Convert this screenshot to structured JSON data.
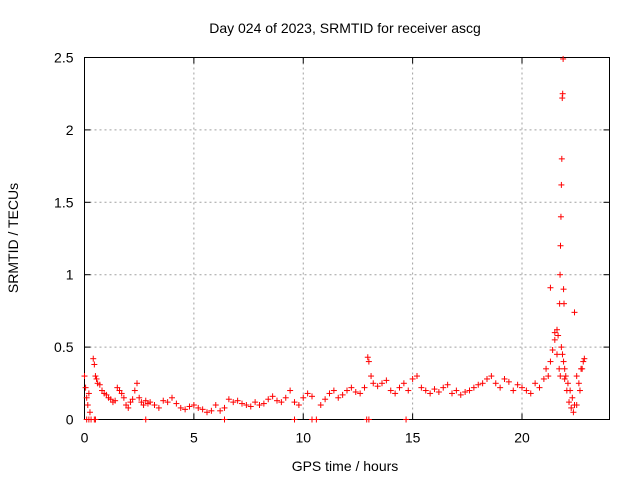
{
  "chart_data": {
    "type": "scatter",
    "title": "Day 024 of 2023, SRMTID for receiver ascg",
    "xlabel": "GPS time / hours",
    "ylabel": "SRMTID / TECUs",
    "xlim": [
      0,
      24
    ],
    "ylim": [
      0,
      2.5
    ],
    "xticks": [
      0,
      5,
      10,
      15,
      20
    ],
    "xtick_labels": [
      "0",
      "5",
      "10",
      "15",
      "20"
    ],
    "yticks": [
      0,
      0.5,
      1,
      1.5,
      2,
      2.5
    ],
    "ytick_labels": [
      "0",
      "0.5",
      "1",
      "1.5",
      "2",
      "2.5"
    ],
    "grid": true,
    "marker": "+",
    "color": "#ff0000",
    "series": [
      {
        "name": "SRMTID",
        "x": [
          0.0,
          0.05,
          0.1,
          0.15,
          0.2,
          0.25,
          0.3,
          0.4,
          0.45,
          0.5,
          0.55,
          0.6,
          0.7,
          0.8,
          0.9,
          1.0,
          1.1,
          1.2,
          1.3,
          1.4,
          1.5,
          1.6,
          1.7,
          1.8,
          1.9,
          2.0,
          2.1,
          2.2,
          2.3,
          2.4,
          2.5,
          2.6,
          2.7,
          2.8,
          2.9,
          3.0,
          3.2,
          3.4,
          3.6,
          3.8,
          4.0,
          4.2,
          4.4,
          4.6,
          4.8,
          5.0,
          5.2,
          5.4,
          5.6,
          5.8,
          6.0,
          6.2,
          6.4,
          6.6,
          6.8,
          7.0,
          7.2,
          7.4,
          7.6,
          7.8,
          8.0,
          8.2,
          8.4,
          8.6,
          8.8,
          9.0,
          9.2,
          9.4,
          9.6,
          9.8,
          10.0,
          10.2,
          10.4,
          10.6,
          10.8,
          11.0,
          11.2,
          11.4,
          11.6,
          11.8,
          12.0,
          12.2,
          12.4,
          12.6,
          12.8,
          12.95,
          13.0,
          13.1,
          13.2,
          13.4,
          13.6,
          13.8,
          14.0,
          14.2,
          14.4,
          14.6,
          14.8,
          15.0,
          15.2,
          15.4,
          15.6,
          15.8,
          16.0,
          16.2,
          16.4,
          16.6,
          16.8,
          17.0,
          17.2,
          17.4,
          17.6,
          17.8,
          18.0,
          18.2,
          18.4,
          18.6,
          18.8,
          19.0,
          19.2,
          19.4,
          19.6,
          19.8,
          20.0,
          20.2,
          20.4,
          20.6,
          20.8,
          21.0,
          21.1,
          21.2,
          21.3,
          21.4,
          21.5,
          21.6,
          21.7,
          21.75,
          21.8,
          21.85,
          21.9,
          21.95,
          22.0,
          22.1,
          22.2,
          22.3,
          22.4,
          22.5,
          22.6,
          22.7,
          22.8,
          0.1,
          0.2,
          0.45,
          0.5,
          2.8,
          6.4,
          9.6,
          10.4,
          12.9,
          13.0,
          14.7,
          21.72,
          21.74,
          21.76,
          21.78,
          21.8,
          21.82,
          21.84,
          21.86,
          21.88,
          21.9,
          21.92,
          21.3,
          21.6,
          22.4,
          21.5,
          21.65,
          21.95,
          22.05,
          22.15,
          22.25,
          22.35,
          22.5,
          22.65,
          22.75,
          22.85
        ],
        "y": [
          0.3,
          0.22,
          0.15,
          0.1,
          0.18,
          0.05,
          0.0,
          0.42,
          0.38,
          0.3,
          0.28,
          0.25,
          0.24,
          0.2,
          0.18,
          0.17,
          0.15,
          0.14,
          0.12,
          0.13,
          0.22,
          0.2,
          0.18,
          0.15,
          0.1,
          0.08,
          0.12,
          0.14,
          0.2,
          0.25,
          0.15,
          0.12,
          0.1,
          0.13,
          0.11,
          0.12,
          0.1,
          0.08,
          0.13,
          0.12,
          0.15,
          0.11,
          0.08,
          0.07,
          0.09,
          0.1,
          0.08,
          0.07,
          0.05,
          0.06,
          0.1,
          0.06,
          0.08,
          0.14,
          0.12,
          0.13,
          0.11,
          0.1,
          0.09,
          0.12,
          0.1,
          0.11,
          0.14,
          0.16,
          0.13,
          0.12,
          0.15,
          0.2,
          0.12,
          0.1,
          0.15,
          0.18,
          0.16,
          0.0,
          0.1,
          0.14,
          0.18,
          0.2,
          0.15,
          0.17,
          0.2,
          0.22,
          0.19,
          0.18,
          0.22,
          0.43,
          0.4,
          0.3,
          0.25,
          0.23,
          0.25,
          0.27,
          0.2,
          0.18,
          0.22,
          0.25,
          0.2,
          0.28,
          0.3,
          0.22,
          0.2,
          0.18,
          0.21,
          0.19,
          0.22,
          0.24,
          0.18,
          0.2,
          0.17,
          0.19,
          0.2,
          0.22,
          0.24,
          0.25,
          0.28,
          0.3,
          0.25,
          0.22,
          0.28,
          0.26,
          0.2,
          0.24,
          0.22,
          0.2,
          0.18,
          0.25,
          0.22,
          0.28,
          0.35,
          0.3,
          0.4,
          0.48,
          0.55,
          0.45,
          0.35,
          0.3,
          0.5,
          0.45,
          0.4,
          0.35,
          0.3,
          0.25,
          0.2,
          0.15,
          0.1,
          0.3,
          0.25,
          0.35,
          0.4,
          0.0,
          0.0,
          0.0,
          0.0,
          0.0,
          0.0,
          0.0,
          0.0,
          0.0,
          0.0,
          0.0,
          0.8,
          1.0,
          1.2,
          1.4,
          1.62,
          1.8,
          2.22,
          2.25,
          2.49,
          0.9,
          0.8,
          0.91,
          0.62,
          0.74,
          0.6,
          0.58,
          0.28,
          0.2,
          0.12,
          0.08,
          0.05,
          0.1,
          0.2,
          0.35,
          0.42
        ]
      }
    ]
  }
}
